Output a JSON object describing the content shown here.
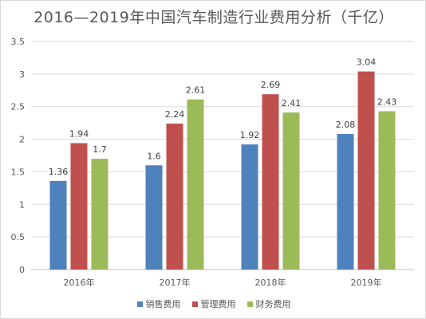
{
  "chart_data": {
    "type": "bar",
    "title": "2016—2019年中国汽车制造行业费用分析（千亿）",
    "categories": [
      "2016年",
      "2017年",
      "2018年",
      "2019年"
    ],
    "series": [
      {
        "name": "销售费用",
        "color": "#4f81bd",
        "values": [
          1.36,
          1.6,
          1.92,
          2.08
        ]
      },
      {
        "name": "管理费用",
        "color": "#c0504d",
        "values": [
          1.94,
          2.24,
          2.69,
          3.04
        ]
      },
      {
        "name": "财务费用",
        "color": "#9bbb59",
        "values": [
          1.7,
          2.61,
          2.41,
          2.43
        ]
      }
    ],
    "ylim": [
      0,
      3.5
    ],
    "yticks": [
      "0",
      "0.5",
      "1",
      "1.5",
      "2",
      "2.5",
      "3",
      "3.5"
    ],
    "grid": true,
    "legend_position": "bottom"
  }
}
